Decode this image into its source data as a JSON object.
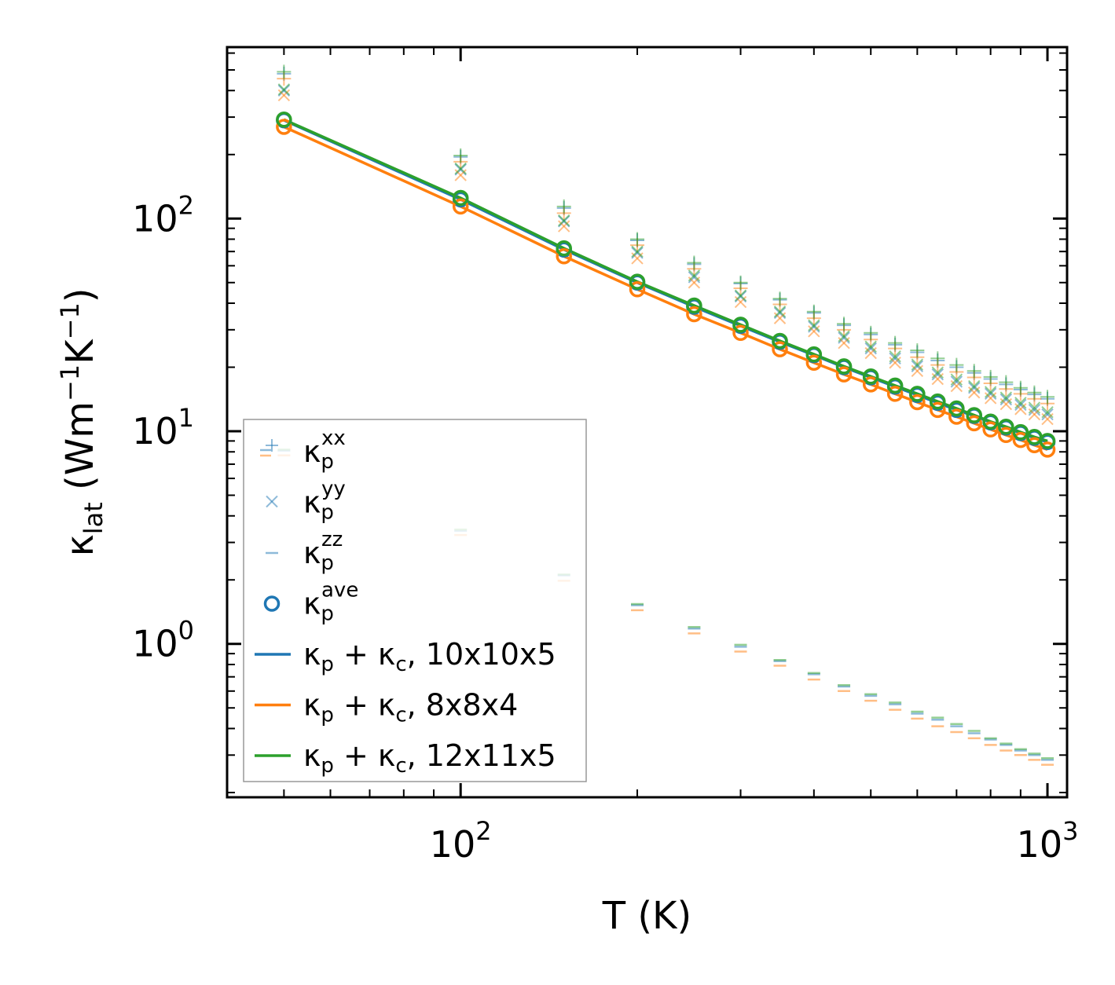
{
  "chart_data": {
    "type": "scatter",
    "title": "",
    "xlabel": "T (K)",
    "ylabel": "κ_lat (Wm^-1 K^-1)",
    "xscale": "log",
    "yscale": "log",
    "xlim": [
      40,
      1080
    ],
    "ylim": [
      0.19,
      640
    ],
    "x_tick_labels": [
      {
        "value": 100,
        "base": "10",
        "exp": "2"
      },
      {
        "value": 1000,
        "base": "10",
        "exp": "3"
      }
    ],
    "y_tick_labels": [
      {
        "value": 1,
        "base": "10",
        "exp": "0"
      },
      {
        "value": 10,
        "base": "10",
        "exp": "1"
      },
      {
        "value": 100,
        "base": "10",
        "exp": "2"
      }
    ],
    "legend_location": "lower-left",
    "legend": [
      {
        "marker": "plus",
        "sub": "p",
        "sup": "xx",
        "suffix": ""
      },
      {
        "marker": "x",
        "sub": "p",
        "sup": "yy",
        "suffix": ""
      },
      {
        "marker": "dash",
        "sub": "p",
        "sup": "zz",
        "suffix": ""
      },
      {
        "marker": "circle",
        "sub": "p",
        "sup": "ave",
        "suffix": ""
      },
      {
        "marker": "line",
        "series": 0,
        "suffix": ", 10x10x5"
      },
      {
        "marker": "line",
        "series": 1,
        "suffix": ", 8x8x4"
      },
      {
        "marker": "line",
        "series": 2,
        "suffix": ", 12x11x5"
      }
    ],
    "x": [
      50,
      100,
      150,
      200,
      250,
      300,
      350,
      400,
      450,
      500,
      550,
      600,
      650,
      700,
      750,
      800,
      850,
      900,
      950,
      1000
    ],
    "series": [
      {
        "name": "κp + κc, 10x10x5",
        "color": "#1f77b4",
        "kappa_xx": [
          480,
          195,
          112,
          79,
          61,
          49.5,
          41.5,
          36,
          31.5,
          28.5,
          25.5,
          23.5,
          21.5,
          20,
          18.8,
          17.6,
          16.6,
          15.7,
          14.9,
          14.2
        ],
        "kappa_yy": [
          400,
          170,
          97,
          69,
          53,
          43,
          36,
          31,
          27.5,
          24.5,
          22,
          20.2,
          18.5,
          17.1,
          16,
          15,
          14.1,
          13.3,
          12.6,
          12
        ],
        "kappa_zz": [
          8.1,
          3.4,
          2.1,
          1.52,
          1.18,
          0.97,
          0.83,
          0.72,
          0.63,
          0.57,
          0.52,
          0.47,
          0.44,
          0.41,
          0.38,
          0.355,
          0.335,
          0.315,
          0.3,
          0.285
        ],
        "kappa_ave": [
          290,
          123,
          71.5,
          50,
          38.5,
          31.3,
          26.3,
          22.8,
          20,
          17.9,
          16.2,
          14.8,
          13.6,
          12.6,
          11.8,
          11,
          10.4,
          9.8,
          9.3,
          8.9
        ]
      },
      {
        "name": "κp + κc, 8x8x4",
        "color": "#ff7f0e",
        "kappa_xx": [
          455,
          185,
          106,
          75,
          58,
          47,
          39.5,
          34,
          30,
          27,
          24.5,
          22.3,
          20.5,
          19,
          17.9,
          16.8,
          15.8,
          15,
          14.2,
          13.5
        ],
        "kappa_yy": [
          380,
          160,
          92,
          65,
          50,
          40.5,
          34,
          29.5,
          26,
          23.3,
          21,
          19.2,
          17.6,
          16.3,
          15.2,
          14.3,
          13.4,
          12.7,
          12,
          11.4
        ],
        "kappa_zz": [
          7.7,
          3.25,
          1.98,
          1.44,
          1.12,
          0.92,
          0.79,
          0.68,
          0.6,
          0.54,
          0.49,
          0.445,
          0.41,
          0.385,
          0.36,
          0.335,
          0.315,
          0.3,
          0.285,
          0.27
        ],
        "kappa_ave": [
          270,
          114,
          66.5,
          46.5,
          35.5,
          29,
          24.3,
          21,
          18.5,
          16.6,
          15,
          13.7,
          12.6,
          11.7,
          10.9,
          10.2,
          9.6,
          9.1,
          8.6,
          8.2
        ]
      },
      {
        "name": "κp + κc, 12x11x5",
        "color": "#2ca02c",
        "kappa_xx": [
          490,
          198,
          114,
          80,
          62,
          50,
          42,
          36.5,
          32,
          29,
          26,
          24,
          22,
          20.5,
          19.2,
          18,
          17,
          16,
          15.2,
          14.5
        ],
        "kappa_yy": [
          405,
          172,
          98,
          70,
          54,
          43.5,
          36.5,
          31.5,
          28,
          25,
          22.5,
          20.6,
          18.9,
          17.5,
          16.3,
          15.3,
          14.4,
          13.6,
          12.9,
          12.3
        ],
        "kappa_zz": [
          8.2,
          3.45,
          2.12,
          1.54,
          1.2,
          0.99,
          0.84,
          0.73,
          0.64,
          0.58,
          0.53,
          0.48,
          0.45,
          0.42,
          0.39,
          0.36,
          0.34,
          0.32,
          0.305,
          0.29
        ],
        "kappa_ave": [
          292,
          125,
          72.5,
          50.5,
          39,
          31.7,
          26.6,
          23,
          20.2,
          18.1,
          16.4,
          15,
          13.8,
          12.8,
          11.9,
          11.1,
          10.5,
          9.9,
          9.4,
          9
        ]
      }
    ]
  }
}
